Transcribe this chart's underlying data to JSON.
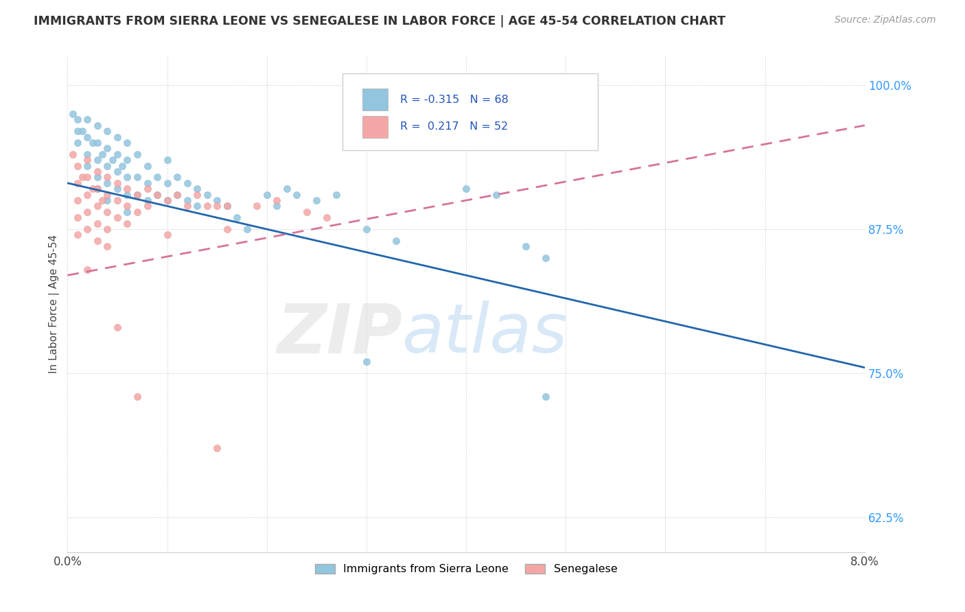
{
  "title": "IMMIGRANTS FROM SIERRA LEONE VS SENEGALESE IN LABOR FORCE | AGE 45-54 CORRELATION CHART",
  "source": "Source: ZipAtlas.com",
  "ylabel": "In Labor Force | Age 45-54",
  "xlim": [
    0.0,
    0.08
  ],
  "ylim": [
    0.595,
    1.025
  ],
  "x_ticks": [
    0.0,
    0.01,
    0.02,
    0.03,
    0.04,
    0.05,
    0.06,
    0.07,
    0.08
  ],
  "x_tick_labels": [
    "0.0%",
    "",
    "",
    "",
    "",
    "",
    "",
    "",
    "8.0%"
  ],
  "y_ticks": [
    0.625,
    0.75,
    0.875,
    1.0
  ],
  "y_tick_labels": [
    "62.5%",
    "75.0%",
    "87.5%",
    "100.0%"
  ],
  "R_blue": -0.315,
  "N_blue": 68,
  "R_pink": 0.217,
  "N_pink": 52,
  "legend_labels": [
    "Immigrants from Sierra Leone",
    "Senegalese"
  ],
  "blue_color": "#92c5de",
  "pink_color": "#f4a6a6",
  "blue_line_color": "#2166ac",
  "pink_line_color": "#d6729a",
  "blue_line_x0": 0.0,
  "blue_line_y0": 0.915,
  "blue_line_x1": 0.08,
  "blue_line_y1": 0.755,
  "pink_line_x0": 0.0,
  "pink_line_y0": 0.835,
  "pink_line_x1": 0.08,
  "pink_line_y1": 0.965
}
